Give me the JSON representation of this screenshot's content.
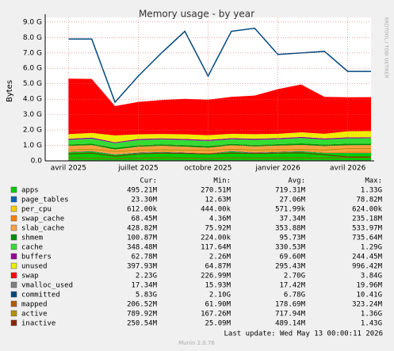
{
  "chart_data": {
    "type": "area",
    "title": "Memory usage - by year",
    "y_label": "Bytes",
    "watermark": "RRDTOOL / TOBI OETIKER",
    "x": [
      "2025-04",
      "2025-05",
      "2025-06",
      "2025-07",
      "2025-08",
      "2025-09",
      "2025-10",
      "2025-11",
      "2025-12",
      "2026-01",
      "2026-02",
      "2026-03",
      "2026-04",
      "2026-05"
    ],
    "xlim": [
      "2025-03",
      "2026-05"
    ],
    "xticks": [
      {
        "value": "2025-04",
        "label": "avril 2025"
      },
      {
        "value": "2025-07",
        "label": "juillet 2025"
      },
      {
        "value": "2025-10",
        "label": "octobre 2025"
      },
      {
        "value": "2026-01",
        "label": "janvier 2026"
      },
      {
        "value": "2026-04",
        "label": "avril 2026"
      }
    ],
    "ylim": [
      0,
      9.3
    ],
    "yticks": [
      {
        "value": 0,
        "label": "0.0"
      },
      {
        "value": 1,
        "label": "1.0 G"
      },
      {
        "value": 2,
        "label": "2.0 G"
      },
      {
        "value": 3,
        "label": "3.0 G"
      },
      {
        "value": 4,
        "label": "4.0 G"
      },
      {
        "value": 5,
        "label": "5.0 G"
      },
      {
        "value": 6,
        "label": "6.0 G"
      },
      {
        "value": 7,
        "label": "7.0 G"
      },
      {
        "value": 8,
        "label": "8.0 G"
      },
      {
        "value": 9,
        "label": "9.0 G"
      }
    ],
    "grid": true,
    "stat_headers": [
      "Cur:",
      "Min:",
      "Avg:",
      "Max:"
    ],
    "series": [
      {
        "name": "apps",
        "color": "#00cc00",
        "style": "area",
        "values": [
          0.55,
          0.6,
          0.4,
          0.5,
          0.55,
          0.5,
          0.45,
          0.6,
          0.5,
          0.55,
          0.6,
          0.5,
          0.5,
          0.5
        ],
        "stats": [
          "495.21M",
          "270.51M",
          "719.31M",
          "1.33G"
        ]
      },
      {
        "name": "page_tables",
        "color": "#0066b3",
        "style": "area",
        "values": [
          0.03,
          0.03,
          0.02,
          0.03,
          0.03,
          0.03,
          0.02,
          0.03,
          0.03,
          0.03,
          0.03,
          0.02,
          0.02,
          0.02
        ],
        "stats": [
          "23.30M",
          "12.63M",
          "27.06M",
          "78.82M"
        ]
      },
      {
        "name": "per_cpu",
        "color": "#ffcc00",
        "style": "area",
        "values": [
          0.0006,
          0.0006,
          0.0006,
          0.0006,
          0.0006,
          0.0006,
          0.0006,
          0.0006,
          0.0006,
          0.0006,
          0.0006,
          0.0006,
          0.0006,
          0.0006
        ],
        "stats": [
          "612.00k",
          "444.00k",
          "571.99k",
          "624.00k"
        ]
      },
      {
        "name": "swap_cache",
        "color": "#ff8000",
        "style": "area",
        "values": [
          0.03,
          0.04,
          0.02,
          0.03,
          0.04,
          0.03,
          0.04,
          0.03,
          0.04,
          0.05,
          0.04,
          0.05,
          0.07,
          0.07
        ],
        "stats": [
          "68.45M",
          "4.36M",
          "37.34M",
          "235.18M"
        ]
      },
      {
        "name": "slab_cache",
        "color": "#ffa040",
        "style": "area",
        "values": [
          0.35,
          0.35,
          0.3,
          0.35,
          0.35,
          0.36,
          0.34,
          0.35,
          0.36,
          0.35,
          0.36,
          0.38,
          0.42,
          0.43
        ],
        "stats": [
          "428.82M",
          "75.92M",
          "353.88M",
          "533.97M"
        ]
      },
      {
        "name": "shmem",
        "color": "#008f00",
        "style": "area",
        "values": [
          0.1,
          0.09,
          0.1,
          0.09,
          0.1,
          0.1,
          0.1,
          0.09,
          0.1,
          0.1,
          0.1,
          0.1,
          0.1,
          0.1
        ],
        "stats": [
          "100.87M",
          "224.00k",
          "95.73M",
          "735.64M"
        ]
      },
      {
        "name": "cache",
        "color": "#33dd33",
        "style": "area",
        "values": [
          0.3,
          0.33,
          0.3,
          0.35,
          0.32,
          0.33,
          0.34,
          0.3,
          0.33,
          0.32,
          0.35,
          0.33,
          0.35,
          0.35
        ],
        "stats": [
          "348.48M",
          "117.64M",
          "330.53M",
          "1.29G"
        ]
      },
      {
        "name": "buffers",
        "color": "#990099",
        "style": "area",
        "values": [
          0.07,
          0.07,
          0.06,
          0.07,
          0.07,
          0.07,
          0.07,
          0.07,
          0.07,
          0.07,
          0.07,
          0.07,
          0.06,
          0.06
        ],
        "stats": [
          "62.78M",
          "2.26M",
          "69.60M",
          "244.45M"
        ]
      },
      {
        "name": "unused",
        "color": "#eeee00",
        "style": "area",
        "values": [
          0.3,
          0.3,
          0.45,
          0.3,
          0.28,
          0.3,
          0.3,
          0.28,
          0.3,
          0.28,
          0.3,
          0.3,
          0.4,
          0.4
        ],
        "stats": [
          "397.93M",
          "64.87M",
          "295.43M",
          "996.42M"
        ]
      },
      {
        "name": "swap",
        "color": "#ff0000",
        "style": "area",
        "values": [
          3.6,
          3.5,
          1.9,
          2.1,
          2.2,
          2.3,
          2.3,
          2.4,
          2.5,
          2.9,
          3.1,
          2.4,
          2.2,
          2.2
        ],
        "stats": [
          "2.23G",
          "226.99M",
          "2.70G",
          "3.84G"
        ]
      },
      {
        "name": "vmalloc_used",
        "color": "#808080",
        "style": "line",
        "values": [
          0.017,
          0.017,
          0.016,
          0.017,
          0.017,
          0.017,
          0.017,
          0.017,
          0.017,
          0.018,
          0.018,
          0.017,
          0.017,
          0.017
        ],
        "stats": [
          "17.34M",
          "15.93M",
          "17.42M",
          "19.96M"
        ]
      },
      {
        "name": "committed",
        "color": "#00487d",
        "style": "line",
        "values": [
          7.9,
          7.9,
          3.8,
          5.5,
          7.0,
          8.4,
          5.5,
          8.4,
          8.6,
          6.9,
          7.0,
          7.1,
          5.8,
          5.8
        ],
        "stats": [
          "5.83G",
          "2.10G",
          "6.78G",
          "10.41G"
        ]
      },
      {
        "name": "mapped",
        "color": "#b35a00",
        "style": "line",
        "values": [
          0.2,
          0.18,
          0.15,
          0.18,
          0.2,
          0.18,
          0.17,
          0.2,
          0.18,
          0.19,
          0.2,
          0.18,
          0.21,
          0.21
        ],
        "stats": [
          "206.52M",
          "61.90M",
          "178.69M",
          "323.24M"
        ]
      },
      {
        "name": "active",
        "color": "#b38f00",
        "style": "line",
        "values": [
          0.7,
          0.75,
          0.6,
          0.7,
          0.72,
          0.7,
          0.68,
          0.75,
          0.7,
          0.72,
          0.75,
          0.7,
          0.79,
          0.79
        ],
        "stats": [
          "789.92M",
          "167.26M",
          "717.94M",
          "1.36G"
        ]
      },
      {
        "name": "inactive",
        "color": "#8b2500",
        "style": "line",
        "values": [
          0.45,
          0.5,
          0.3,
          0.45,
          0.5,
          0.48,
          0.45,
          0.5,
          0.48,
          0.5,
          0.52,
          0.4,
          0.25,
          0.25
        ],
        "stats": [
          "250.54M",
          "25.09M",
          "489.14M",
          "1.43G"
        ]
      }
    ],
    "last_update": "Last update: Wed May 13 00:00:11 2026",
    "footer": "Munin 2.0.76"
  }
}
